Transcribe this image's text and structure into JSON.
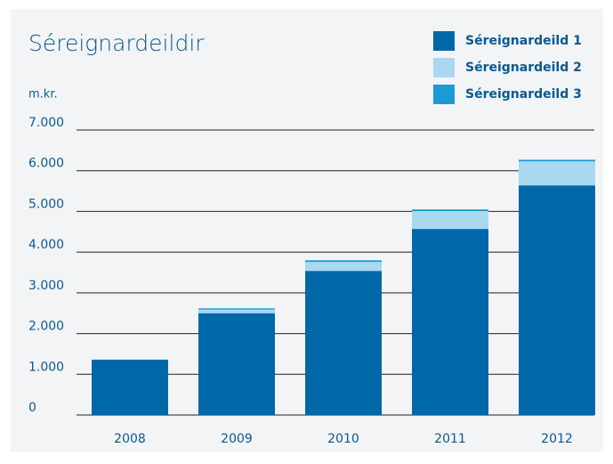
{
  "chart_data": {
    "type": "stacked_bar",
    "title": "Séreignardeildir",
    "y_axis_label": "m.kr.",
    "categories": [
      "2008",
      "2009",
      "2010",
      "2011",
      "2012"
    ],
    "series": [
      {
        "name": "Séreignardeild 1",
        "color": "#0068a8",
        "values": [
          1360,
          2500,
          3540,
          4570,
          5640
        ]
      },
      {
        "name": "Séreignardeild 2",
        "color": "#a9d8f1",
        "values": [
          0,
          90,
          220,
          440,
          590
        ]
      },
      {
        "name": "Séreignardeild 3",
        "color": "#1b9ad6",
        "values": [
          0,
          30,
          40,
          40,
          40
        ]
      }
    ],
    "ylim": [
      0,
      7000
    ],
    "yticks": [
      0,
      {
        "value": 1000,
        "label": "1.000"
      },
      {
        "value": 2000,
        "label": "2.000"
      },
      {
        "value": 3000,
        "label": "3.000"
      },
      {
        "value": 4000,
        "label": "4.000"
      },
      {
        "value": 5000,
        "label": "5.000"
      },
      {
        "value": 6000,
        "label": "6.000"
      },
      {
        "value": 7000,
        "label": "7.000"
      }
    ],
    "grid": true
  }
}
